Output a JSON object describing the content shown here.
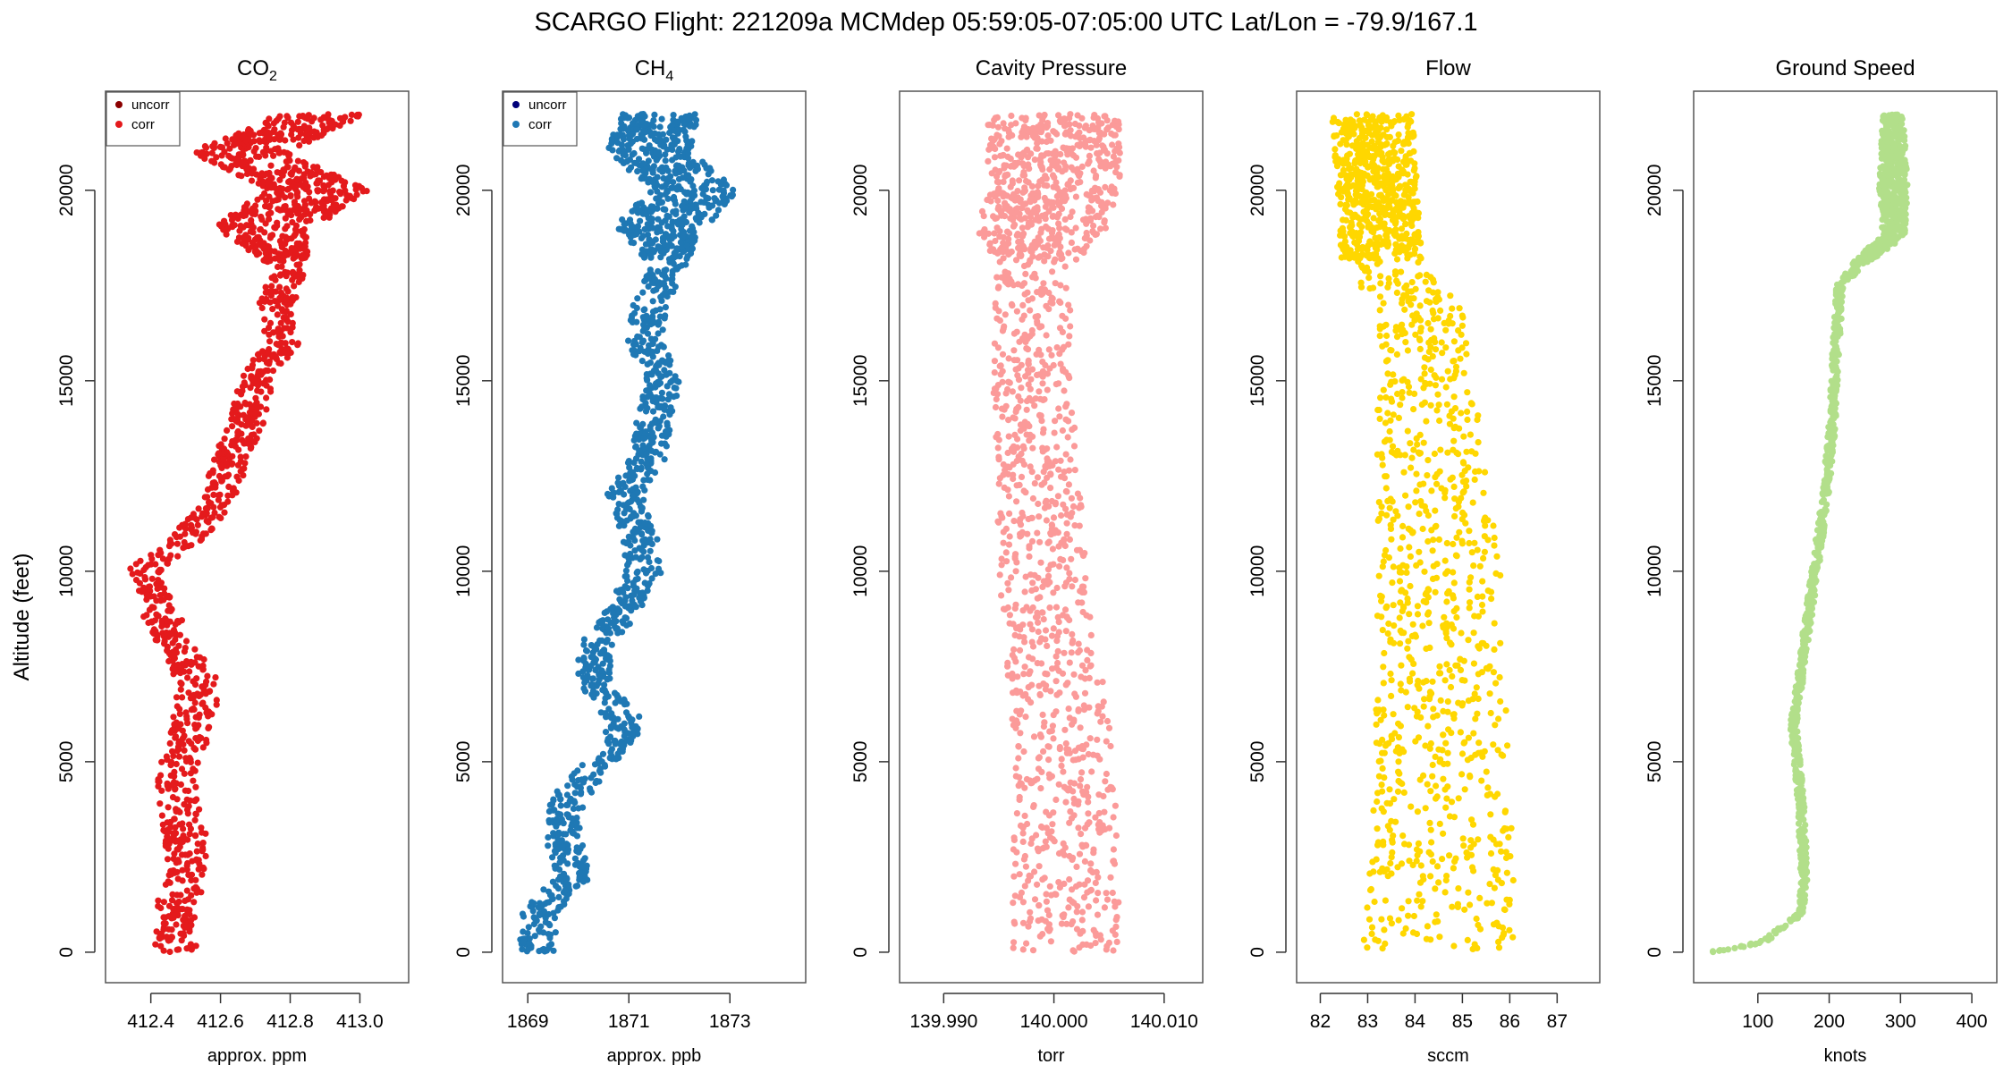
{
  "title": "SCARGO Flight: 221209a  MCMdep  05:59:05-07:05:00 UTC  Lat/Lon = -79.9/167.1",
  "ylabel": "Altitude (feet)",
  "chart_data": [
    {
      "type": "scatter",
      "key": "co2",
      "title": "CO",
      "title_sub": "2",
      "xlabel": "approx. ppm",
      "xlim": [
        412.27,
        413.14
      ],
      "xticks": [
        412.4,
        412.6,
        412.8,
        413.0
      ],
      "xtick_labels": [
        "412.4",
        "412.6",
        "412.8",
        "413.0"
      ],
      "ylim": [
        -800,
        22600
      ],
      "yticks": [
        0,
        5000,
        10000,
        15000,
        20000
      ],
      "ytick_labels": [
        "0",
        "5000",
        "10000",
        "15000",
        "20000"
      ],
      "legend": {
        "position": "top-left",
        "entries": [
          {
            "label": "uncorr",
            "color": "#8b0000"
          },
          {
            "label": "corr",
            "color": "#e41a1c"
          }
        ]
      },
      "series": [
        {
          "name": "corr",
          "color": "#e41a1c",
          "profile": [
            [
              0,
              412.47
            ],
            [
              1000,
              412.47
            ],
            [
              2000,
              412.5
            ],
            [
              3000,
              412.5
            ],
            [
              4000,
              412.48
            ],
            [
              5000,
              412.48
            ],
            [
              6000,
              412.52
            ],
            [
              7000,
              412.54
            ],
            [
              8000,
              412.48
            ],
            [
              9000,
              412.42
            ],
            [
              10000,
              412.38
            ],
            [
              11000,
              412.52
            ],
            [
              12000,
              412.6
            ],
            [
              13000,
              412.63
            ],
            [
              14000,
              412.68
            ],
            [
              15000,
              412.7
            ],
            [
              16000,
              412.78
            ],
            [
              17000,
              412.76
            ],
            [
              18000,
              412.8
            ],
            [
              19000,
              412.72
            ],
            [
              20000,
              412.88
            ],
            [
              21000,
              412.65
            ],
            [
              22000,
              412.9
            ]
          ],
          "spread": [
            [
              0,
              0.06
            ],
            [
              7000,
              0.06
            ],
            [
              10000,
              0.05
            ],
            [
              18000,
              0.05
            ],
            [
              19200,
              0.15
            ],
            [
              22000,
              0.13
            ]
          ],
          "n": 1500
        }
      ]
    },
    {
      "type": "scatter",
      "key": "ch4",
      "title": "CH",
      "title_sub": "4",
      "xlabel": "approx. ppb",
      "xlim": [
        1868.5,
        1874.5
      ],
      "xticks": [
        1869,
        1871,
        1873
      ],
      "xtick_labels": [
        "1869",
        "1871",
        "1873"
      ],
      "ylim": [
        -800,
        22600
      ],
      "yticks": [
        0,
        5000,
        10000,
        15000,
        20000
      ],
      "ytick_labels": [
        "0",
        "5000",
        "10000",
        "15000",
        "20000"
      ],
      "legend": {
        "position": "top-left",
        "entries": [
          {
            "label": "uncorr",
            "color": "#00007a"
          },
          {
            "label": "corr",
            "color": "#1f78b4"
          }
        ]
      },
      "series": [
        {
          "name": "corr",
          "color": "#1f78b4",
          "profile": [
            [
              0,
              1869.2
            ],
            [
              1000,
              1869.2
            ],
            [
              2000,
              1869.9
            ],
            [
              3000,
              1869.7
            ],
            [
              4000,
              1869.8
            ],
            [
              5000,
              1870.4
            ],
            [
              6000,
              1871.0
            ],
            [
              7000,
              1870.3
            ],
            [
              8000,
              1870.3
            ],
            [
              9000,
              1870.9
            ],
            [
              10000,
              1871.3
            ],
            [
              11000,
              1871.2
            ],
            [
              12000,
              1870.9
            ],
            [
              13000,
              1871.4
            ],
            [
              14000,
              1871.5
            ],
            [
              15000,
              1871.7
            ],
            [
              16000,
              1871.3
            ],
            [
              17000,
              1871.4
            ],
            [
              18000,
              1871.8
            ],
            [
              19000,
              1871.6
            ],
            [
              20000,
              1872.3
            ],
            [
              21000,
              1871.4
            ],
            [
              22000,
              1871.6
            ]
          ],
          "spread": [
            [
              0,
              0.35
            ],
            [
              9000,
              0.35
            ],
            [
              18000,
              0.35
            ],
            [
              19200,
              0.9
            ],
            [
              22000,
              0.8
            ]
          ],
          "n": 1500
        }
      ]
    },
    {
      "type": "scatter",
      "key": "pressure",
      "title": "Cavity Pressure",
      "xlabel": "torr",
      "xlim": [
        139.986,
        140.0135
      ],
      "xticks": [
        139.99,
        140.0,
        140.01
      ],
      "xtick_labels": [
        "139.990",
        "140.000",
        "140.010"
      ],
      "ylim": [
        -800,
        22600
      ],
      "yticks": [
        0,
        5000,
        10000,
        15000,
        20000
      ],
      "ytick_labels": [
        "0",
        "5000",
        "10000",
        "15000",
        "20000"
      ],
      "series": [
        {
          "name": "pressure",
          "color": "#fb9a99",
          "profile": [
            [
              0,
              140.001
            ],
            [
              5000,
              140.001
            ],
            [
              10000,
              139.999
            ],
            [
              15000,
              139.998
            ],
            [
              18000,
              139.998
            ],
            [
              20000,
              140.0
            ],
            [
              22000,
              140.0
            ]
          ],
          "spread": [
            [
              0,
              0.005
            ],
            [
              15000,
              0.0035
            ],
            [
              18000,
              0.0035
            ],
            [
              19000,
              0.006
            ],
            [
              22000,
              0.006
            ]
          ],
          "n": 1500
        }
      ]
    },
    {
      "type": "scatter",
      "key": "flow",
      "title": "Flow",
      "xlabel": "sccm",
      "xlim": [
        81.5,
        87.9
      ],
      "xticks": [
        82,
        83,
        84,
        85,
        86,
        87
      ],
      "xtick_labels": [
        "82",
        "83",
        "84",
        "85",
        "86",
        "87"
      ],
      "ylim": [
        -800,
        22600
      ],
      "yticks": [
        0,
        5000,
        10000,
        15000,
        20000
      ],
      "ytick_labels": [
        "0",
        "5000",
        "10000",
        "15000",
        "20000"
      ],
      "series": [
        {
          "name": "flow",
          "color": "#ffd700",
          "profile": [
            [
              0,
              84.5
            ],
            [
              5000,
              84.6
            ],
            [
              10000,
              84.5
            ],
            [
              17000,
              84.1
            ],
            [
              18000,
              83.3
            ],
            [
              22000,
              83.1
            ]
          ],
          "spread": [
            [
              0,
              1.6
            ],
            [
              10000,
              1.3
            ],
            [
              17000,
              0.9
            ],
            [
              18000,
              0.85
            ],
            [
              22000,
              0.85
            ]
          ],
          "n": 1500
        }
      ]
    },
    {
      "type": "scatter",
      "key": "speed",
      "title": "Ground Speed",
      "xlabel": "knots",
      "xlim": [
        10,
        435
      ],
      "xticks": [
        100,
        200,
        300,
        400
      ],
      "xtick_labels": [
        "100",
        "200",
        "300",
        "400"
      ],
      "ylim": [
        -800,
        22600
      ],
      "yticks": [
        0,
        5000,
        10000,
        15000,
        20000
      ],
      "ytick_labels": [
        "0",
        "5000",
        "10000",
        "15000",
        "20000"
      ],
      "series": [
        {
          "name": "speed",
          "color": "#b2df8a",
          "profile": [
            [
              0,
              30
            ],
            [
              100,
              70
            ],
            [
              300,
              110
            ],
            [
              600,
              130
            ],
            [
              1000,
              160
            ],
            [
              2000,
              165
            ],
            [
              4000,
              160
            ],
            [
              6000,
              150
            ],
            [
              8000,
              165
            ],
            [
              10000,
              180
            ],
            [
              12000,
              195
            ],
            [
              14000,
              205
            ],
            [
              16000,
              210
            ],
            [
              17500,
              215
            ],
            [
              18200,
              250
            ],
            [
              18800,
              290
            ],
            [
              20000,
              290
            ],
            [
              22000,
              290
            ]
          ],
          "spread": [
            [
              0,
              5
            ],
            [
              1000,
              5
            ],
            [
              17500,
              5
            ],
            [
              18500,
              15
            ],
            [
              20000,
              20
            ],
            [
              22000,
              15
            ]
          ],
          "n": 1300
        }
      ]
    }
  ]
}
